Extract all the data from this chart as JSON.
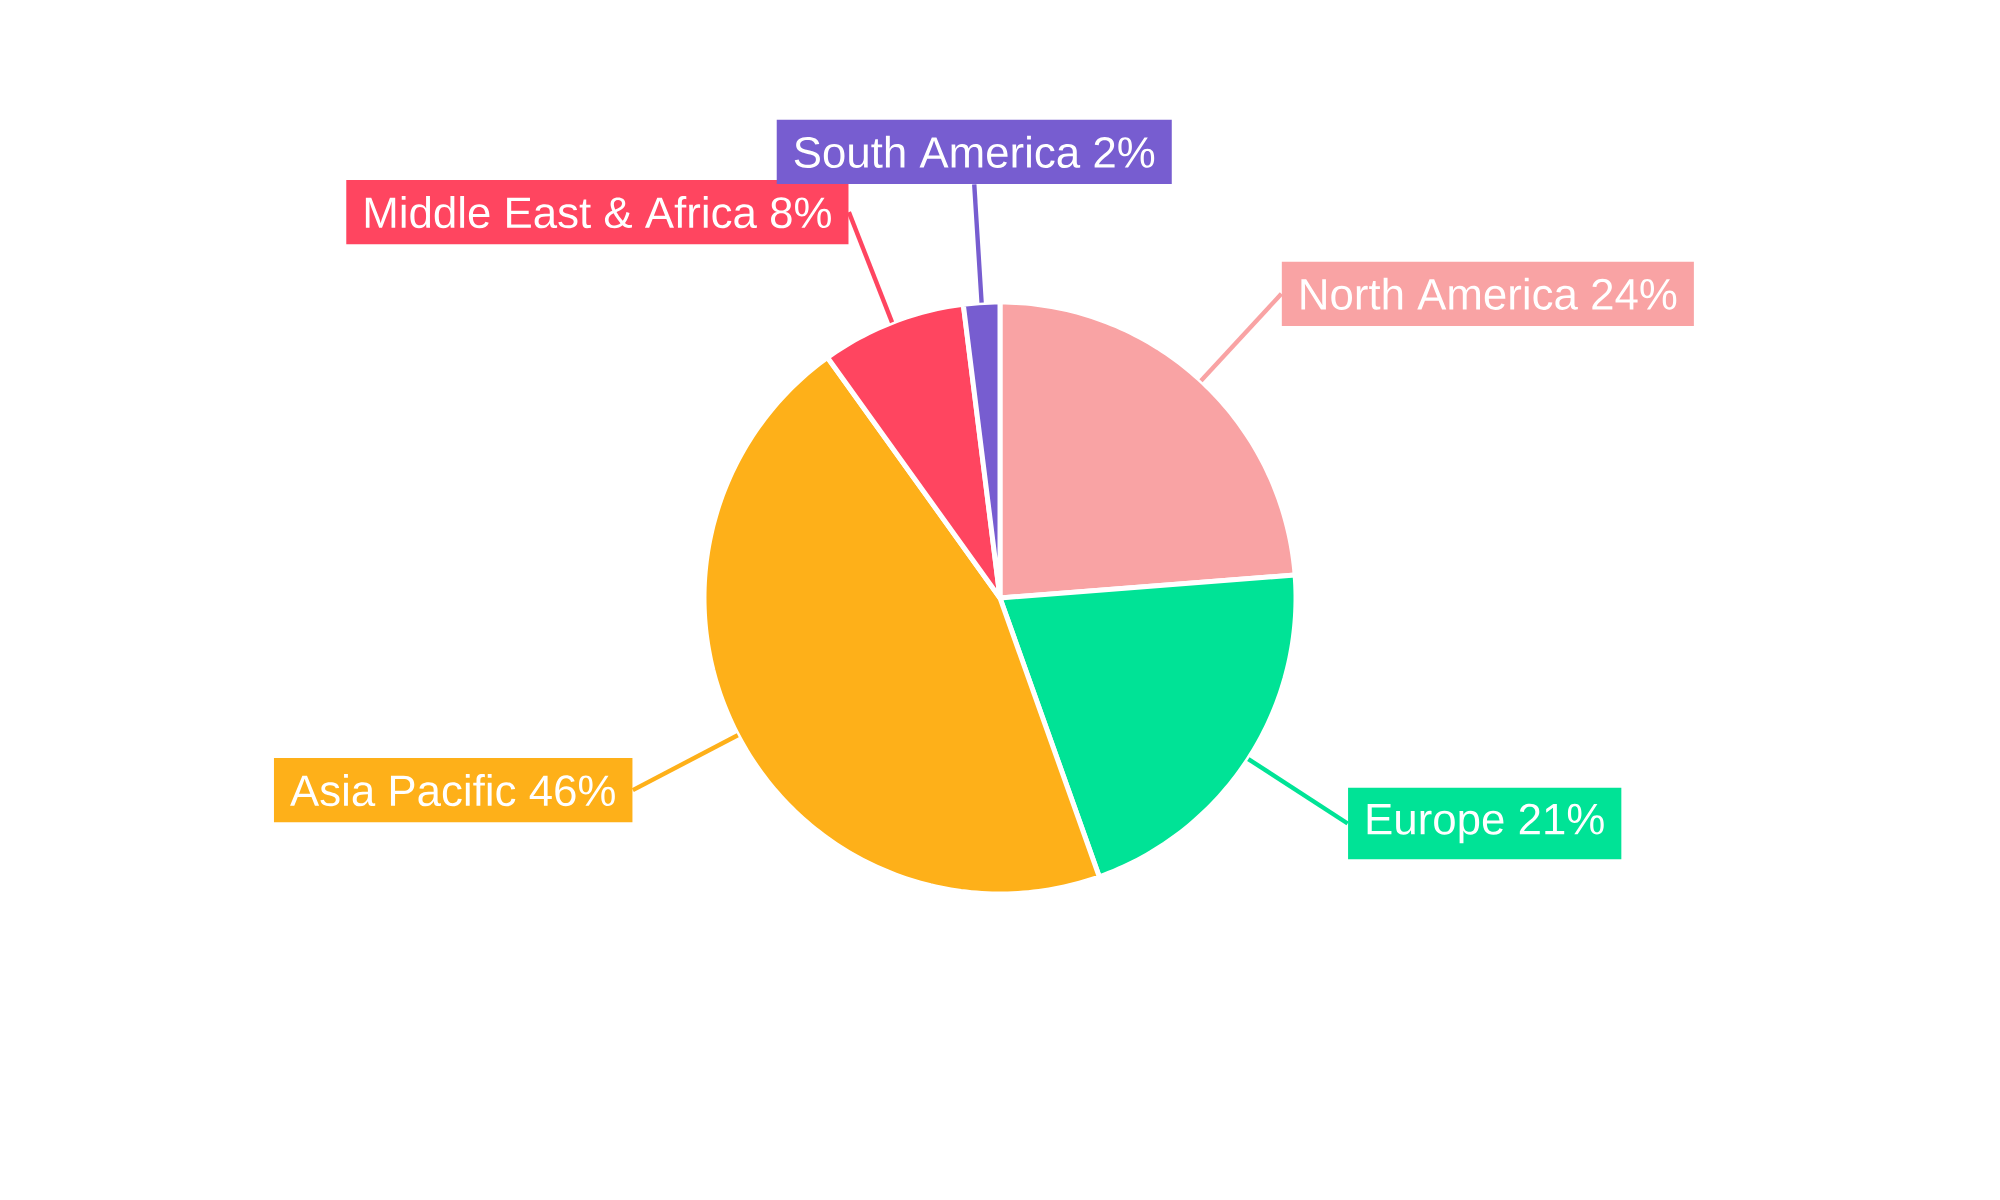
{
  "chart_data": {
    "type": "pie",
    "categories": [
      "North America",
      "Europe",
      "Asia Pacific",
      "Middle East & Africa",
      "South America"
    ],
    "values": [
      24,
      21,
      46,
      8,
      2
    ],
    "value_labels": [
      "24%",
      "21%",
      "46%",
      "8%",
      "2%"
    ],
    "colors": [
      "#f9a3a4",
      "#00e396",
      "#feb019",
      "#ff4560",
      "#775dd0"
    ]
  }
}
